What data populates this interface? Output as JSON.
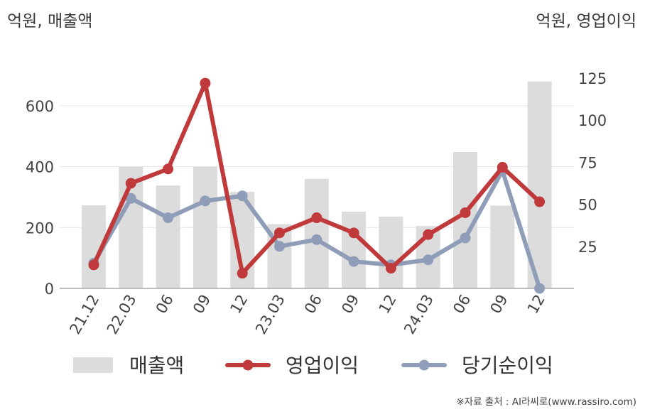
{
  "left_unit": "억원, 매출액",
  "right_unit": "억원, 영업이익",
  "source": "※자료 출처 : AI라씨로(www.rassiro.com)",
  "chart_data": {
    "type": "bar+line",
    "categories": [
      "21.12",
      "22.03",
      "06",
      "09",
      "12",
      "23.03",
      "06",
      "09",
      "12",
      "24.03",
      "06",
      "09",
      "12"
    ],
    "y_left": {
      "ticks": [
        0,
        200,
        400,
        600
      ],
      "range": [
        0,
        720
      ]
    },
    "y_right": {
      "ticks": [
        25,
        50,
        75,
        100,
        125
      ],
      "range": [
        0,
        135
      ]
    },
    "grid": true,
    "legend_position": "bottom",
    "series": [
      {
        "name": "매출액",
        "type": "bar",
        "axis": "left",
        "color": "#dcdcdc",
        "values": [
          273,
          400,
          338,
          400,
          317,
          211,
          360,
          252,
          236,
          205,
          448,
          272,
          680
        ]
      },
      {
        "name": "영업이익",
        "type": "line",
        "axis": "right",
        "color": "#c0393b",
        "values": [
          14,
          62.5,
          71,
          122,
          9,
          33,
          42,
          33,
          12,
          32,
          45,
          72,
          51.5
        ]
      },
      {
        "name": "당기순이익",
        "type": "line",
        "axis": "right",
        "color": "#8f9db8",
        "values": [
          15,
          53.5,
          42,
          52,
          55,
          25,
          29,
          16,
          14,
          17,
          30,
          70,
          0
        ]
      }
    ]
  }
}
